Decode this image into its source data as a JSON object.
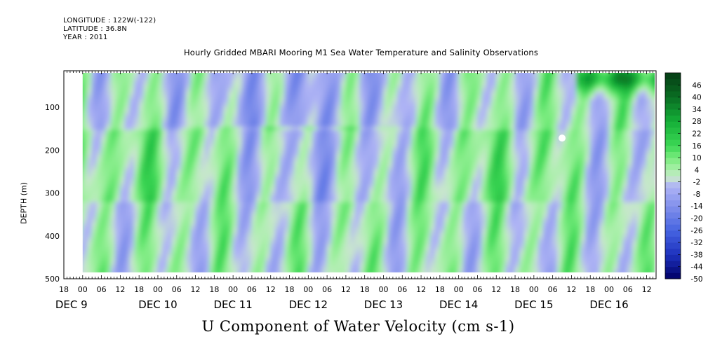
{
  "header": {
    "longitude": "LONGITUDE : 122W(-122)",
    "latitude": "LATITUDE : 36.8N",
    "year": "YEAR : 2011"
  },
  "title": "Hourly Gridded MBARI Mooring M1 Sea Water Temperature and Salinity Observations",
  "bottom_label": "U Component of Water Velocity (cm s-1)",
  "colors": {
    "negative_strong": "#000066",
    "negative_mid": "#4a66dd",
    "negative_weak": "#a8b0f0",
    "near_zero": "#c8f0c8",
    "positive_weak": "#88ee88",
    "positive_mid": "#22cc44",
    "positive_strong": "#0a4a14",
    "missing": "#ffffff"
  },
  "chart_data": {
    "type": "heatmap",
    "title": "Hourly Gridded MBARI Mooring M1 Sea Water Temperature and Salinity Observations",
    "xlabel": "",
    "ylabel": "DEPTH (m)",
    "variable": "U Component of Water Velocity (cm s-1)",
    "x_range": [
      "2011-12-08T18:00",
      "2011-12-16T15:00"
    ],
    "data_x_range": [
      "2011-12-09T00:00",
      "2011-12-16T15:00"
    ],
    "y_range": [
      500,
      15
    ],
    "data_y_range": [
      485,
      20
    ],
    "y_ticks": [
      100,
      200,
      300,
      400,
      500
    ],
    "x_hour_ticks": [
      "18",
      "00",
      "06",
      "12",
      "18",
      "00",
      "06",
      "12",
      "18",
      "00",
      "06",
      "12",
      "18",
      "00",
      "06",
      "12",
      "18",
      "00",
      "06",
      "12",
      "18",
      "00",
      "06",
      "12",
      "18",
      "00",
      "06",
      "12",
      "18",
      "00",
      "06",
      "12"
    ],
    "x_day_labels": [
      "DEC  9",
      "DEC 10",
      "DEC 11",
      "DEC 12",
      "DEC 13",
      "DEC 14",
      "DEC 15",
      "DEC 16"
    ],
    "first_day_label_prefix": "DEC",
    "first_day_label_num": "9",
    "colorbar_levels": [
      46,
      40,
      34,
      28,
      22,
      16,
      10,
      4,
      -2,
      -8,
      -14,
      -20,
      -26,
      -32,
      -38,
      -44,
      -50
    ],
    "colorbar_range": [
      -50,
      52
    ],
    "dominant_pattern": [
      {
        "period": "DEC 9 00-06",
        "depth": "20-500",
        "value_cm_s": -8
      },
      {
        "period": "DEC 9 12",
        "depth": "100-500",
        "value_cm_s": 12
      },
      {
        "period": "DEC 10 00-12",
        "depth": "20-500",
        "value_cm_s": -10
      },
      {
        "period": "DEC 10 18-DEC 11 00",
        "depth": "150-500",
        "value_cm_s": 10
      },
      {
        "period": "DEC 11 12",
        "depth": "20-150",
        "value_cm_s": -25
      },
      {
        "period": "DEC 11 18-DEC 12 06",
        "depth": "150-500",
        "value_cm_s": 18
      },
      {
        "period": "DEC 12 12",
        "depth": "20-120",
        "value_cm_s": -30
      },
      {
        "period": "DEC 12 18-DEC 13 06",
        "depth": "150-500",
        "value_cm_s": 20
      },
      {
        "period": "DEC 14 12",
        "depth": "150-250",
        "value_cm_s": 25
      },
      {
        "period": "DEC 15 18-DEC 16 06",
        "depth": "20-60",
        "value_cm_s": 40
      }
    ]
  }
}
